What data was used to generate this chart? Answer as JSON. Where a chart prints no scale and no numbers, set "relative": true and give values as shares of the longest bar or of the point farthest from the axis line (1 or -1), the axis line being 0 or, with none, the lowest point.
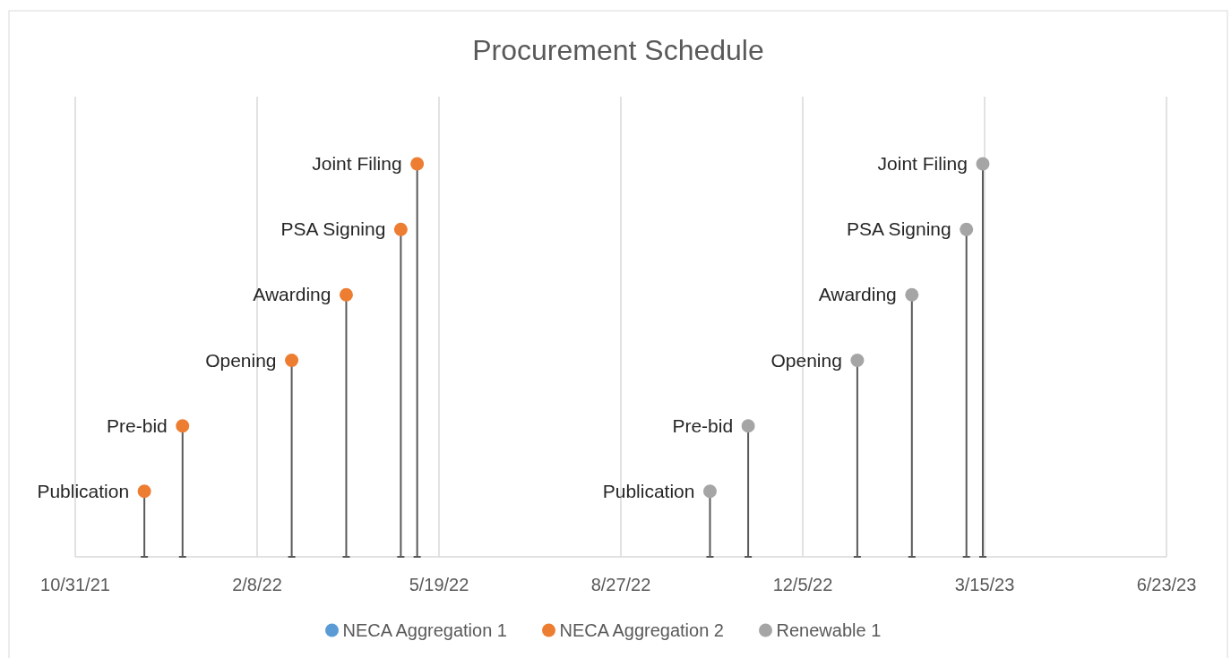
{
  "chart_data": {
    "type": "lollipop",
    "title": "Procurement Schedule",
    "relative": true,
    "xlim": [
      "2021-10-31",
      "2023-06-23"
    ],
    "xticks": [
      {
        "value": "2021-10-31",
        "label": "10/31/21"
      },
      {
        "value": "2022-02-08",
        "label": "2/8/22"
      },
      {
        "value": "2022-05-19",
        "label": "5/19/22"
      },
      {
        "value": "2022-08-27",
        "label": "8/27/22"
      },
      {
        "value": "2022-12-05",
        "label": "12/5/22"
      },
      {
        "value": "2023-03-15",
        "label": "3/15/23"
      },
      {
        "value": "2023-06-23",
        "label": "6/23/23"
      }
    ],
    "series": [
      {
        "name": "NECA Aggregation 1",
        "color": "#5b9bd5"
      },
      {
        "name": "NECA Aggregation 2",
        "color": "#ed7d31",
        "x": [
          "2021-12-08",
          "2021-12-29",
          "2022-02-27",
          "2022-03-29",
          "2022-04-28",
          "2022-05-07"
        ],
        "values": [
          0.167,
          0.333,
          0.5,
          0.667,
          0.833,
          1
        ]
      },
      {
        "name": "Renewable 1",
        "color": "#a5a5a5",
        "x": [
          "2022-10-15",
          "2022-11-05",
          "2023-01-04",
          "2023-02-03",
          "2023-03-05",
          "2023-03-14"
        ],
        "values": [
          0.167,
          0.333,
          0.5,
          0.667,
          0.833,
          1
        ]
      }
    ],
    "annotations": [
      {
        "text": "Publication",
        "x": "2021-12-08",
        "y": 0.167
      },
      {
        "text": "Pre-bid",
        "x": "2021-12-29",
        "y": 0.333
      },
      {
        "text": "Opening",
        "x": "2022-02-27",
        "y": 0.5
      },
      {
        "text": "Awarding",
        "x": "2022-03-29",
        "y": 0.667
      },
      {
        "text": "PSA Signing",
        "x": "2022-04-28",
        "y": 0.833
      },
      {
        "text": "Joint Filing",
        "x": "2022-05-07",
        "y": 1
      },
      {
        "text": "Publication",
        "x": "2022-10-15",
        "y": 0.167
      },
      {
        "text": "Pre-bid",
        "x": "2022-11-05",
        "y": 0.333
      },
      {
        "text": "Opening",
        "x": "2023-01-04",
        "y": 0.5
      },
      {
        "text": "Awarding",
        "x": "2023-02-03",
        "y": 0.667
      },
      {
        "text": "PSA Signing",
        "x": "2023-03-05",
        "y": 0.833
      },
      {
        "text": "Joint Filing",
        "x": "2023-03-14",
        "y": 1
      }
    ],
    "grid": "x",
    "legend": "bottom",
    "marker": "circle"
  }
}
